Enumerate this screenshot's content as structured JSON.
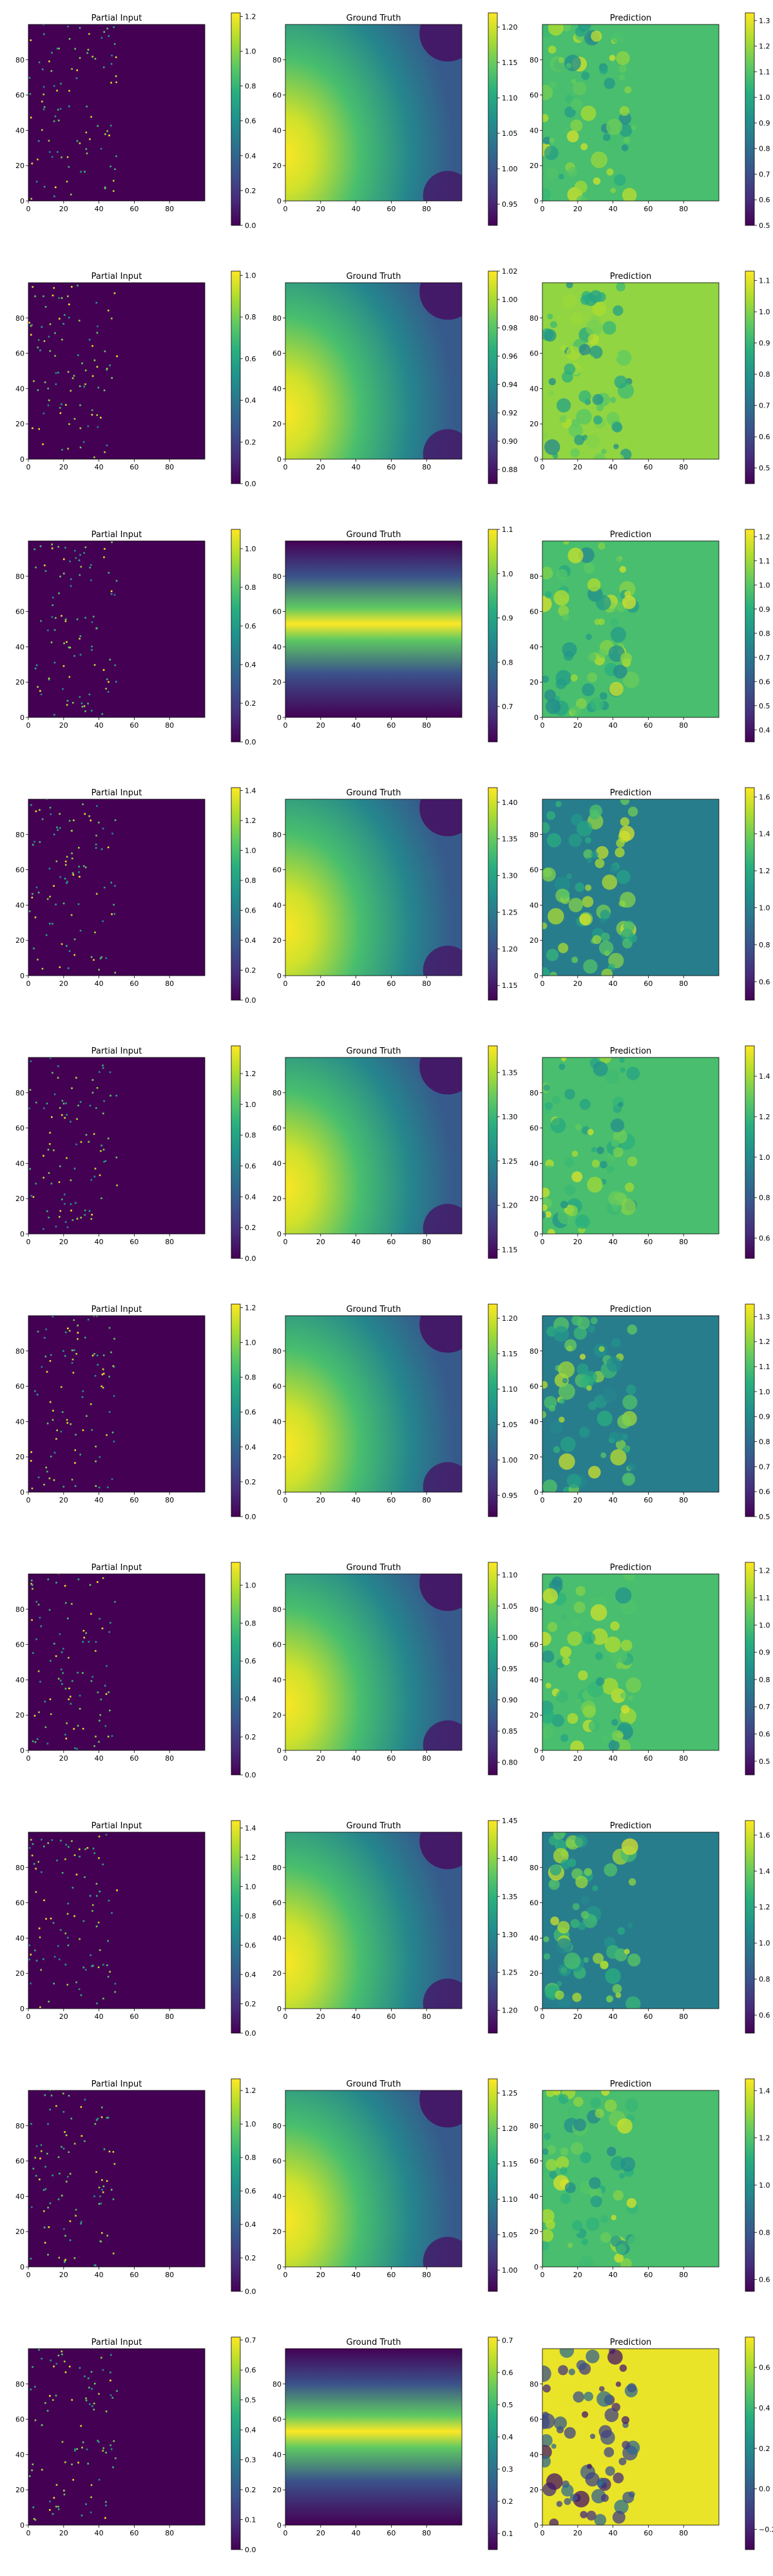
{
  "chart_data": [
    {
      "type": "heatmap",
      "title": "Partial Input",
      "kind": "sparse",
      "xlim": [
        0,
        99
      ],
      "ylim": [
        0,
        99
      ],
      "xticks": [
        0,
        20,
        40,
        60,
        80
      ],
      "yticks": [
        0,
        20,
        40,
        60,
        80
      ],
      "colormap": "viridis",
      "colorbar": {
        "min": 0.0,
        "max": 1.22,
        "ticks": [
          0.0,
          0.2,
          0.4,
          0.6,
          0.8,
          1.0,
          1.2
        ]
      }
    },
    {
      "type": "heatmap",
      "title": "Ground Truth",
      "kind": "blob",
      "xlim": [
        0,
        99
      ],
      "ylim": [
        0,
        99
      ],
      "xticks": [
        0,
        20,
        40,
        60,
        80
      ],
      "yticks": [
        0,
        20,
        40,
        60,
        80
      ],
      "colormap": "viridis",
      "colorbar": {
        "min": 0.92,
        "max": 1.22,
        "ticks": [
          0.95,
          1.0,
          1.05,
          1.1,
          1.15,
          1.2
        ]
      }
    },
    {
      "type": "heatmap",
      "title": "Prediction",
      "kind": "pred",
      "xlim": [
        0,
        99
      ],
      "ylim": [
        0,
        99
      ],
      "xticks": [
        0,
        20,
        40,
        60,
        80
      ],
      "yticks": [
        0,
        20,
        40,
        60,
        80
      ],
      "colormap": "viridis",
      "colorbar": {
        "min": 0.5,
        "max": 1.33,
        "ticks": [
          0.5,
          0.6,
          0.7,
          0.8,
          0.9,
          1.0,
          1.1,
          1.2,
          1.3
        ]
      }
    },
    {
      "type": "heatmap",
      "title": "Partial Input",
      "kind": "sparse",
      "xlim": [
        0,
        99
      ],
      "ylim": [
        0,
        99
      ],
      "xticks": [
        0,
        20,
        40,
        60,
        80
      ],
      "yticks": [
        0,
        20,
        40,
        60,
        80
      ],
      "colormap": "viridis",
      "colorbar": {
        "min": 0.0,
        "max": 1.02,
        "ticks": [
          0.0,
          0.2,
          0.4,
          0.6,
          0.8,
          1.0
        ]
      }
    },
    {
      "type": "heatmap",
      "title": "Ground Truth",
      "kind": "blob",
      "xlim": [
        0,
        99
      ],
      "ylim": [
        0,
        99
      ],
      "xticks": [
        0,
        20,
        40,
        60,
        80
      ],
      "yticks": [
        0,
        20,
        40,
        60,
        80
      ],
      "colormap": "viridis",
      "colorbar": {
        "min": 0.87,
        "max": 1.02,
        "ticks": [
          0.88,
          0.9,
          0.92,
          0.94,
          0.96,
          0.98,
          1.0,
          1.02
        ]
      }
    },
    {
      "type": "heatmap",
      "title": "Prediction",
      "kind": "pred",
      "xlim": [
        0,
        99
      ],
      "ylim": [
        0,
        99
      ],
      "xticks": [
        0,
        20,
        40,
        60,
        80
      ],
      "yticks": [
        0,
        20,
        40,
        60,
        80
      ],
      "colormap": "viridis",
      "colorbar": {
        "min": 0.45,
        "max": 1.13,
        "ticks": [
          0.5,
          0.6,
          0.7,
          0.8,
          0.9,
          1.0,
          1.1
        ]
      }
    },
    {
      "type": "heatmap",
      "title": "Partial Input",
      "kind": "sparse",
      "xlim": [
        0,
        99
      ],
      "ylim": [
        0,
        99
      ],
      "xticks": [
        0,
        20,
        40,
        60,
        80
      ],
      "yticks": [
        0,
        20,
        40,
        60,
        80
      ],
      "colormap": "viridis",
      "colorbar": {
        "min": 0.0,
        "max": 1.1,
        "ticks": [
          0.0,
          0.2,
          0.4,
          0.6,
          0.8,
          1.0
        ]
      }
    },
    {
      "type": "heatmap",
      "title": "Ground Truth",
      "kind": "band",
      "xlim": [
        0,
        99
      ],
      "ylim": [
        0,
        99
      ],
      "xticks": [
        0,
        20,
        40,
        60,
        80
      ],
      "yticks": [
        0,
        20,
        40,
        60,
        80
      ],
      "colormap": "viridis",
      "colorbar": {
        "min": 0.62,
        "max": 1.1,
        "ticks": [
          0.7,
          0.8,
          0.9,
          1.0,
          1.1
        ]
      }
    },
    {
      "type": "heatmap",
      "title": "Prediction",
      "kind": "pred",
      "xlim": [
        0,
        99
      ],
      "ylim": [
        0,
        99
      ],
      "xticks": [
        0,
        20,
        40,
        60,
        80
      ],
      "yticks": [
        0,
        20,
        40,
        60,
        80
      ],
      "colormap": "viridis",
      "colorbar": {
        "min": 0.35,
        "max": 1.23,
        "ticks": [
          0.4,
          0.5,
          0.6,
          0.7,
          0.8,
          0.9,
          1.0,
          1.1,
          1.2
        ]
      }
    },
    {
      "type": "heatmap",
      "title": "Partial Input",
      "kind": "sparse",
      "xlim": [
        0,
        99
      ],
      "ylim": [
        0,
        99
      ],
      "xticks": [
        0,
        20,
        40,
        60,
        80
      ],
      "yticks": [
        0,
        20,
        40,
        60,
        80
      ],
      "colormap": "viridis",
      "colorbar": {
        "min": 0.0,
        "max": 1.42,
        "ticks": [
          0.0,
          0.2,
          0.4,
          0.6,
          0.8,
          1.0,
          1.2,
          1.4
        ]
      }
    },
    {
      "type": "heatmap",
      "title": "Ground Truth",
      "kind": "blob",
      "xlim": [
        0,
        99
      ],
      "ylim": [
        0,
        99
      ],
      "xticks": [
        0,
        20,
        40,
        60,
        80
      ],
      "yticks": [
        0,
        20,
        40,
        60,
        80
      ],
      "colormap": "viridis",
      "colorbar": {
        "min": 1.13,
        "max": 1.42,
        "ticks": [
          1.15,
          1.2,
          1.25,
          1.3,
          1.35,
          1.4
        ]
      }
    },
    {
      "type": "heatmap",
      "title": "Prediction",
      "kind": "pred",
      "xlim": [
        0,
        99
      ],
      "ylim": [
        0,
        99
      ],
      "xticks": [
        0,
        20,
        40,
        60,
        80
      ],
      "yticks": [
        0,
        20,
        40,
        60,
        80
      ],
      "colormap": "viridis",
      "colorbar": {
        "min": 0.5,
        "max": 1.65,
        "ticks": [
          0.6,
          0.8,
          1.0,
          1.2,
          1.4,
          1.6
        ]
      }
    },
    {
      "type": "heatmap",
      "title": "Partial Input",
      "kind": "sparse",
      "xlim": [
        0,
        99
      ],
      "ylim": [
        0,
        99
      ],
      "xticks": [
        0,
        20,
        40,
        60,
        80
      ],
      "yticks": [
        0,
        20,
        40,
        60,
        80
      ],
      "colormap": "viridis",
      "colorbar": {
        "min": 0.0,
        "max": 1.38,
        "ticks": [
          0.0,
          0.2,
          0.4,
          0.6,
          0.8,
          1.0,
          1.2
        ]
      }
    },
    {
      "type": "heatmap",
      "title": "Ground Truth",
      "kind": "blob",
      "xlim": [
        0,
        99
      ],
      "ylim": [
        0,
        99
      ],
      "xticks": [
        0,
        20,
        40,
        60,
        80
      ],
      "yticks": [
        0,
        20,
        40,
        60,
        80
      ],
      "colormap": "viridis",
      "colorbar": {
        "min": 1.14,
        "max": 1.38,
        "ticks": [
          1.15,
          1.2,
          1.25,
          1.3,
          1.35
        ]
      }
    },
    {
      "type": "heatmap",
      "title": "Prediction",
      "kind": "pred",
      "xlim": [
        0,
        99
      ],
      "ylim": [
        0,
        99
      ],
      "xticks": [
        0,
        20,
        40,
        60,
        80
      ],
      "yticks": [
        0,
        20,
        40,
        60,
        80
      ],
      "colormap": "viridis",
      "colorbar": {
        "min": 0.5,
        "max": 1.55,
        "ticks": [
          0.6,
          0.8,
          1.0,
          1.2,
          1.4
        ]
      }
    },
    {
      "type": "heatmap",
      "title": "Partial Input",
      "kind": "sparse",
      "xlim": [
        0,
        99
      ],
      "ylim": [
        0,
        99
      ],
      "xticks": [
        0,
        20,
        40,
        60,
        80
      ],
      "yticks": [
        0,
        20,
        40,
        60,
        80
      ],
      "colormap": "viridis",
      "colorbar": {
        "min": 0.0,
        "max": 1.22,
        "ticks": [
          0.0,
          0.2,
          0.4,
          0.6,
          0.8,
          1.0,
          1.2
        ]
      }
    },
    {
      "type": "heatmap",
      "title": "Ground Truth",
      "kind": "blob",
      "xlim": [
        0,
        99
      ],
      "ylim": [
        0,
        99
      ],
      "xticks": [
        0,
        20,
        40,
        60,
        80
      ],
      "yticks": [
        0,
        20,
        40,
        60,
        80
      ],
      "colormap": "viridis",
      "colorbar": {
        "min": 0.92,
        "max": 1.22,
        "ticks": [
          0.95,
          1.0,
          1.05,
          1.1,
          1.15,
          1.2
        ]
      }
    },
    {
      "type": "heatmap",
      "title": "Prediction",
      "kind": "pred",
      "xlim": [
        0,
        99
      ],
      "ylim": [
        0,
        99
      ],
      "xticks": [
        0,
        20,
        40,
        60,
        80
      ],
      "yticks": [
        0,
        20,
        40,
        60,
        80
      ],
      "colormap": "viridis",
      "colorbar": {
        "min": 0.5,
        "max": 1.35,
        "ticks": [
          0.5,
          0.6,
          0.7,
          0.8,
          0.9,
          1.0,
          1.1,
          1.2,
          1.3
        ]
      }
    },
    {
      "type": "heatmap",
      "title": "Partial Input",
      "kind": "sparse",
      "xlim": [
        0,
        99
      ],
      "ylim": [
        0,
        99
      ],
      "xticks": [
        0,
        20,
        40,
        60,
        80
      ],
      "yticks": [
        0,
        20,
        40,
        60,
        80
      ],
      "colormap": "viridis",
      "colorbar": {
        "min": 0.0,
        "max": 1.12,
        "ticks": [
          0.0,
          0.2,
          0.4,
          0.6,
          0.8,
          1.0
        ]
      }
    },
    {
      "type": "heatmap",
      "title": "Ground Truth",
      "kind": "blob",
      "xlim": [
        0,
        99
      ],
      "ylim": [
        0,
        99
      ],
      "xticks": [
        0,
        20,
        40,
        60,
        80
      ],
      "yticks": [
        0,
        20,
        40,
        60,
        80
      ],
      "colormap": "viridis",
      "colorbar": {
        "min": 0.78,
        "max": 1.12,
        "ticks": [
          0.8,
          0.85,
          0.9,
          0.95,
          1.0,
          1.05,
          1.1
        ]
      }
    },
    {
      "type": "heatmap",
      "title": "Prediction",
      "kind": "pred",
      "xlim": [
        0,
        99
      ],
      "ylim": [
        0,
        99
      ],
      "xticks": [
        0,
        20,
        40,
        60,
        80
      ],
      "yticks": [
        0,
        20,
        40,
        60,
        80
      ],
      "colormap": "viridis",
      "colorbar": {
        "min": 0.45,
        "max": 1.23,
        "ticks": [
          0.5,
          0.6,
          0.7,
          0.8,
          0.9,
          1.0,
          1.1,
          1.2
        ]
      }
    },
    {
      "type": "heatmap",
      "title": "Partial Input",
      "kind": "sparse",
      "xlim": [
        0,
        99
      ],
      "ylim": [
        0,
        99
      ],
      "xticks": [
        0,
        20,
        40,
        60,
        80
      ],
      "yticks": [
        0,
        20,
        40,
        60,
        80
      ],
      "colormap": "viridis",
      "colorbar": {
        "min": 0.0,
        "max": 1.45,
        "ticks": [
          0.0,
          0.2,
          0.4,
          0.6,
          0.8,
          1.0,
          1.2,
          1.4
        ]
      }
    },
    {
      "type": "heatmap",
      "title": "Ground Truth",
      "kind": "blob",
      "xlim": [
        0,
        99
      ],
      "ylim": [
        0,
        99
      ],
      "xticks": [
        0,
        20,
        40,
        60,
        80
      ],
      "yticks": [
        0,
        20,
        40,
        60,
        80
      ],
      "colormap": "viridis",
      "colorbar": {
        "min": 1.17,
        "max": 1.45,
        "ticks": [
          1.2,
          1.25,
          1.3,
          1.35,
          1.4,
          1.45
        ]
      }
    },
    {
      "type": "heatmap",
      "title": "Prediction",
      "kind": "pred",
      "xlim": [
        0,
        99
      ],
      "ylim": [
        0,
        99
      ],
      "xticks": [
        0,
        20,
        40,
        60,
        80
      ],
      "yticks": [
        0,
        20,
        40,
        60,
        80
      ],
      "colormap": "viridis",
      "colorbar": {
        "min": 0.5,
        "max": 1.68,
        "ticks": [
          0.6,
          0.8,
          1.0,
          1.2,
          1.4,
          1.6
        ]
      }
    },
    {
      "type": "heatmap",
      "title": "Partial Input",
      "kind": "sparse",
      "xlim": [
        0,
        99
      ],
      "ylim": [
        0,
        99
      ],
      "xticks": [
        0,
        20,
        40,
        60,
        80
      ],
      "yticks": [
        0,
        20,
        40,
        60,
        80
      ],
      "colormap": "viridis",
      "colorbar": {
        "min": 0.0,
        "max": 1.27,
        "ticks": [
          0.0,
          0.2,
          0.4,
          0.6,
          0.8,
          1.0,
          1.2
        ]
      }
    },
    {
      "type": "heatmap",
      "title": "Ground Truth",
      "kind": "blob",
      "xlim": [
        0,
        99
      ],
      "ylim": [
        0,
        99
      ],
      "xticks": [
        0,
        20,
        40,
        60,
        80
      ],
      "yticks": [
        0,
        20,
        40,
        60,
        80
      ],
      "colormap": "viridis",
      "colorbar": {
        "min": 0.97,
        "max": 1.27,
        "ticks": [
          1.0,
          1.05,
          1.1,
          1.15,
          1.2,
          1.25
        ]
      }
    },
    {
      "type": "heatmap",
      "title": "Prediction",
      "kind": "pred",
      "xlim": [
        0,
        99
      ],
      "ylim": [
        0,
        99
      ],
      "xticks": [
        0,
        20,
        40,
        60,
        80
      ],
      "yticks": [
        0,
        20,
        40,
        60,
        80
      ],
      "colormap": "viridis",
      "colorbar": {
        "min": 0.55,
        "max": 1.45,
        "ticks": [
          0.6,
          0.8,
          1.0,
          1.2,
          1.4
        ]
      }
    },
    {
      "type": "heatmap",
      "title": "Partial Input",
      "kind": "sparse",
      "xlim": [
        0,
        99
      ],
      "ylim": [
        0,
        99
      ],
      "xticks": [
        0,
        20,
        40,
        60,
        80
      ],
      "yticks": [
        0,
        20,
        40,
        60,
        80
      ],
      "colormap": "viridis",
      "colorbar": {
        "min": 0.0,
        "max": 0.71,
        "ticks": [
          0.0,
          0.1,
          0.2,
          0.3,
          0.4,
          0.5,
          0.6,
          0.7
        ]
      }
    },
    {
      "type": "heatmap",
      "title": "Ground Truth",
      "kind": "band",
      "xlim": [
        0,
        99
      ],
      "ylim": [
        0,
        99
      ],
      "xticks": [
        0,
        20,
        40,
        60,
        80
      ],
      "yticks": [
        0,
        20,
        40,
        60,
        80
      ],
      "colormap": "viridis",
      "colorbar": {
        "min": 0.05,
        "max": 0.71,
        "ticks": [
          0.1,
          0.2,
          0.3,
          0.4,
          0.5,
          0.6,
          0.7
        ]
      }
    },
    {
      "type": "heatmap",
      "title": "Prediction",
      "kind": "pred",
      "xlim": [
        0,
        99
      ],
      "ylim": [
        0,
        99
      ],
      "xticks": [
        0,
        20,
        40,
        60,
        80
      ],
      "yticks": [
        0,
        20,
        40,
        60,
        80
      ],
      "colormap": "viridis",
      "colorbar": {
        "min": -0.3,
        "max": 0.75,
        "ticks": [
          -0.2,
          0.0,
          0.2,
          0.4,
          0.6
        ]
      }
    }
  ]
}
